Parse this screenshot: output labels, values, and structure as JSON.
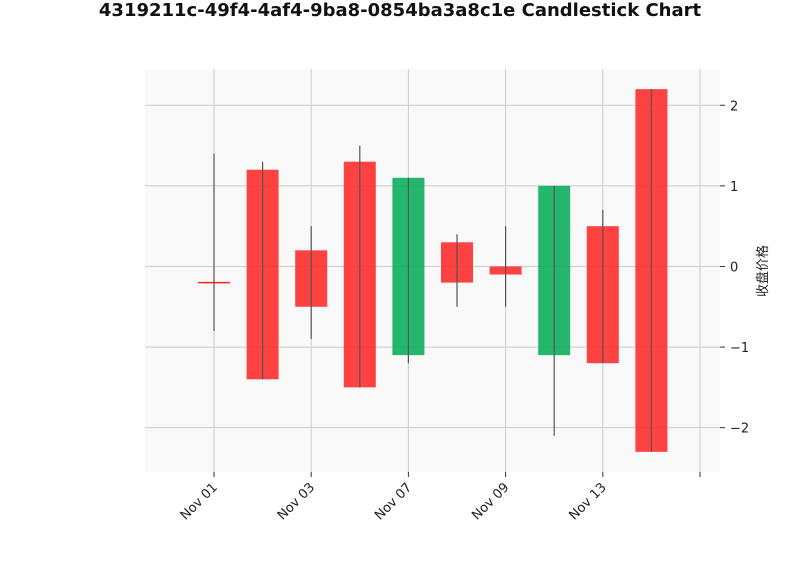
{
  "title": "4319211c-49f4-4af4-9ba8-0854ba3a8c1e Candlestick Chart",
  "chart_data": {
    "type": "candlestick",
    "title": "4319211c-49f4-4af4-9ba8-0854ba3a8c1e Candlestick Chart",
    "ylabel": "收盘价格",
    "xlabel": "",
    "ylim": [
      -2.55,
      2.45
    ],
    "yticks": [
      -2,
      -1,
      0,
      1,
      2
    ],
    "xtick_labels": [
      "Nov 01",
      "Nov 03",
      "Nov 07",
      "Nov 09",
      "Nov 13"
    ],
    "grid": true,
    "y_axis_side": "right",
    "colors": {
      "up": "#00AA55",
      "down": "#FF2222",
      "wick": "#555555",
      "background": "#F9F9F9",
      "grid": "#CCCCCC"
    },
    "candles": [
      {
        "open": -0.2,
        "high": 1.4,
        "low": -0.8,
        "close": -0.2
      },
      {
        "open": 1.2,
        "high": 1.3,
        "low": -1.4,
        "close": -1.4
      },
      {
        "open": 0.2,
        "high": 0.5,
        "low": -0.9,
        "close": -0.5
      },
      {
        "open": 1.3,
        "high": 1.5,
        "low": -1.5,
        "close": -1.5
      },
      {
        "open": -1.1,
        "high": 1.1,
        "low": -1.2,
        "close": 1.1
      },
      {
        "open": 0.3,
        "high": 0.4,
        "low": -0.5,
        "close": -0.2
      },
      {
        "open": 0.0,
        "high": 0.5,
        "low": -0.5,
        "close": -0.1
      },
      {
        "open": -1.1,
        "high": 1.0,
        "low": -2.1,
        "close": 1.0
      },
      {
        "open": 0.5,
        "high": 0.7,
        "low": -1.2,
        "close": -1.2
      },
      {
        "open": 2.2,
        "high": 2.2,
        "low": -2.3,
        "close": -2.3
      }
    ]
  }
}
